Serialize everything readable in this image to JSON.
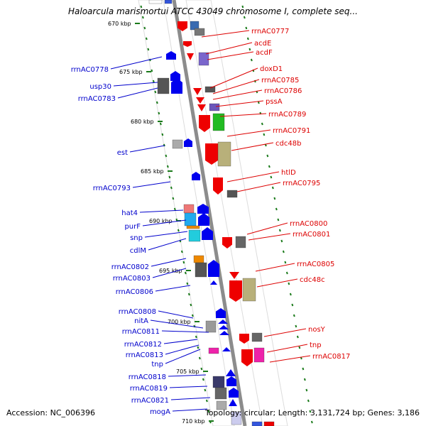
{
  "title": "Haloarcula marismortui ATCC 43049 chromosome I, complete seq...",
  "footer": {
    "accession": "Accession: NC_006396",
    "summary": "Topology: circular; Length: 3,131,724 bp; Genes: 3,186"
  },
  "colors": {
    "backbone": "#8c8c8c",
    "ticks": "#1a7a1a",
    "forward_label": "#0000cc",
    "reverse_label": "#dd0000"
  },
  "ticks": [
    "670 kbp",
    "675 kbp",
    "680 kbp",
    "685 kbp",
    "690 kbp",
    "695 kbp",
    "700 kbp",
    "705 kbp",
    "710 kbp"
  ],
  "labels_left": [
    "rrnAC0778",
    "usp30",
    "rrnAC0783",
    "est",
    "rrnAC0793",
    "hat4",
    "purF",
    "snp",
    "cdlM",
    "rrnAC0802",
    "rrnAC0803",
    "rrnAC0806",
    "rrnAC0808",
    "nitA",
    "rrnAC0811",
    "rrnAC0812",
    "rrnAC0813",
    "tnp",
    "rrnAC0818",
    "rrnAC0819",
    "rrnAC0821",
    "mogA"
  ],
  "labels_right": [
    "rrnAC0777",
    "acdE",
    "acdF",
    "doxD1",
    "rrnAC0785",
    "rrnAC0786",
    "pssA",
    "rrnAC0789",
    "rrnAC0791",
    "cdc48b",
    "htlD",
    "rrnAC0795",
    "rrnAC0800",
    "rrnAC0801",
    "rrnAC0805",
    "cdc48c",
    "nosY",
    "tnp",
    "rrnAC0817"
  ]
}
